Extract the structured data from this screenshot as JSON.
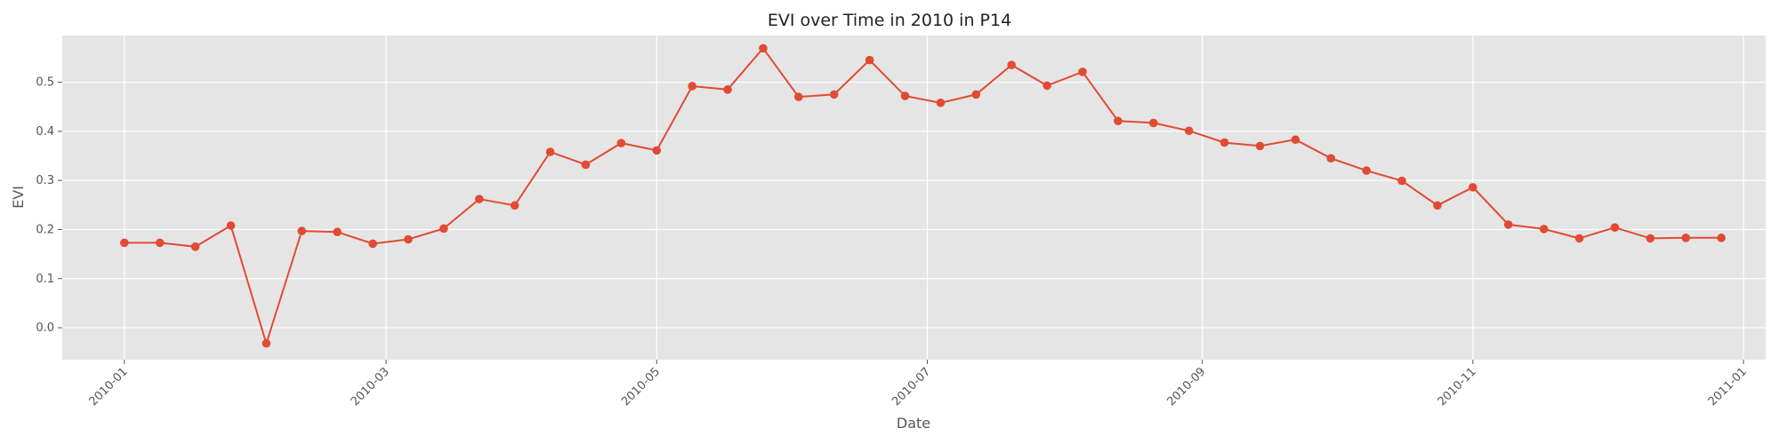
{
  "chart_data": {
    "type": "line",
    "title": "EVI over Time in 2010 in P14",
    "xlabel": "Date",
    "ylabel": "EVI",
    "x_ticks": [
      "2010-01",
      "2010-03",
      "2010-05",
      "2010-07",
      "2010-09",
      "2010-11",
      "2011-01"
    ],
    "y_ticks": [
      "0.0",
      "0.1",
      "0.2",
      "0.3",
      "0.4",
      "0.5"
    ],
    "xlim": [
      "2009-12-18",
      "2011-01-06"
    ],
    "ylim": [
      -0.065,
      0.595
    ],
    "grid": true,
    "background": "#e5e5e5",
    "series": [
      {
        "color": "#e24a33",
        "x": [
          "2010-01-01",
          "2010-01-09",
          "2010-01-17",
          "2010-01-25",
          "2010-02-02",
          "2010-02-10",
          "2010-02-18",
          "2010-02-26",
          "2010-03-06",
          "2010-03-14",
          "2010-03-22",
          "2010-03-30",
          "2010-04-07",
          "2010-04-15",
          "2010-04-23",
          "2010-05-01",
          "2010-05-09",
          "2010-05-17",
          "2010-05-25",
          "2010-06-02",
          "2010-06-10",
          "2010-06-18",
          "2010-06-26",
          "2010-07-04",
          "2010-07-12",
          "2010-07-20",
          "2010-07-28",
          "2010-08-05",
          "2010-08-13",
          "2010-08-21",
          "2010-08-29",
          "2010-09-06",
          "2010-09-14",
          "2010-09-22",
          "2010-09-30",
          "2010-10-08",
          "2010-10-16",
          "2010-10-24",
          "2010-11-01",
          "2010-11-09",
          "2010-11-17",
          "2010-11-25",
          "2010-12-03",
          "2010-12-11",
          "2010-12-19",
          "2010-12-27"
        ],
        "y": [
          0.173,
          0.173,
          0.165,
          0.208,
          -0.032,
          0.197,
          0.195,
          0.171,
          0.18,
          0.202,
          0.262,
          0.249,
          0.358,
          0.332,
          0.376,
          0.361,
          0.492,
          0.485,
          0.569,
          0.47,
          0.475,
          0.545,
          0.472,
          0.458,
          0.475,
          0.535,
          0.493,
          0.521,
          0.421,
          0.417,
          0.401,
          0.377,
          0.37,
          0.383,
          0.345,
          0.32,
          0.299,
          0.249,
          0.286,
          0.21,
          0.201,
          0.182,
          0.204,
          0.182,
          0.183,
          0.183
        ]
      }
    ]
  }
}
